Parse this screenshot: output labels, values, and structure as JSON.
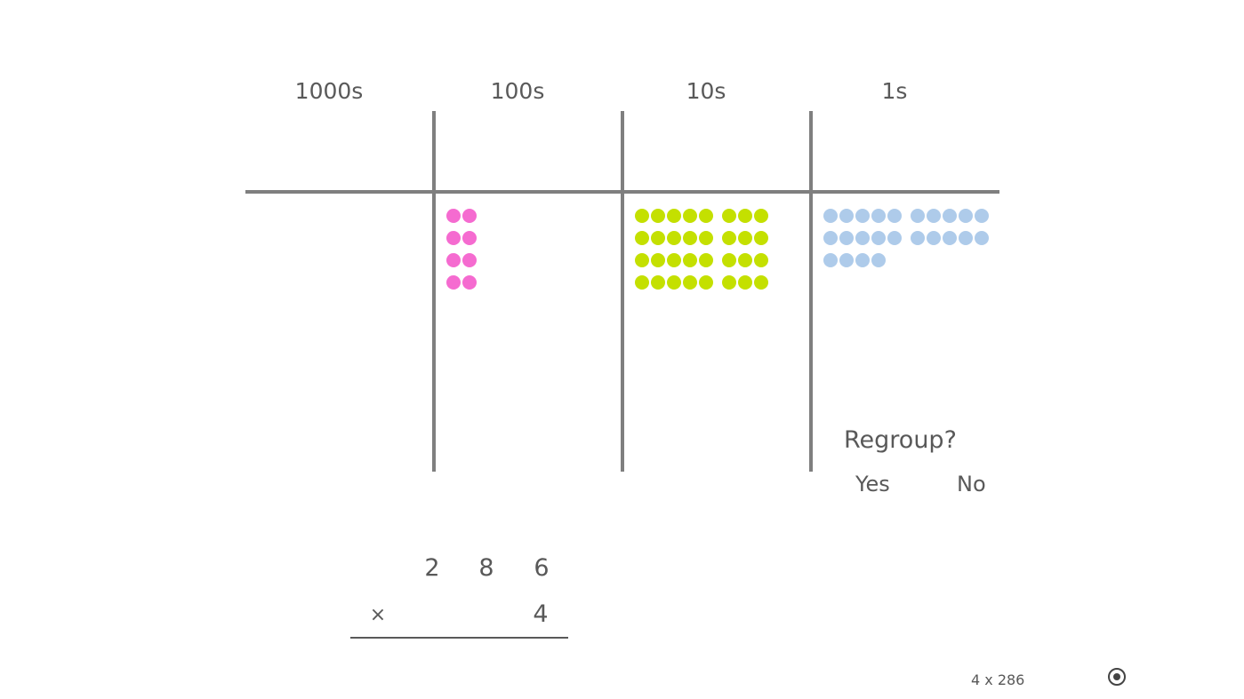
{
  "columns": [
    {
      "label": "1000s",
      "count": 0,
      "color": "#ff66cc"
    },
    {
      "label": "100s",
      "count": 8,
      "color": "#f56bd0",
      "groups": [
        2
      ]
    },
    {
      "label": "10s",
      "count": 32,
      "color": "#c4e000",
      "groups": [
        5,
        3
      ]
    },
    {
      "label": "1s",
      "count": 24,
      "color": "#aecbea",
      "groups": [
        5,
        5
      ]
    }
  ],
  "regroup": {
    "question": "Regroup?",
    "yes": "Yes",
    "no": "No"
  },
  "problem": {
    "digits": [
      "2",
      "8",
      "6"
    ],
    "operator": "×",
    "multiplier": "4"
  },
  "footer": {
    "caption": "4 x 286",
    "icon": "target-icon"
  }
}
